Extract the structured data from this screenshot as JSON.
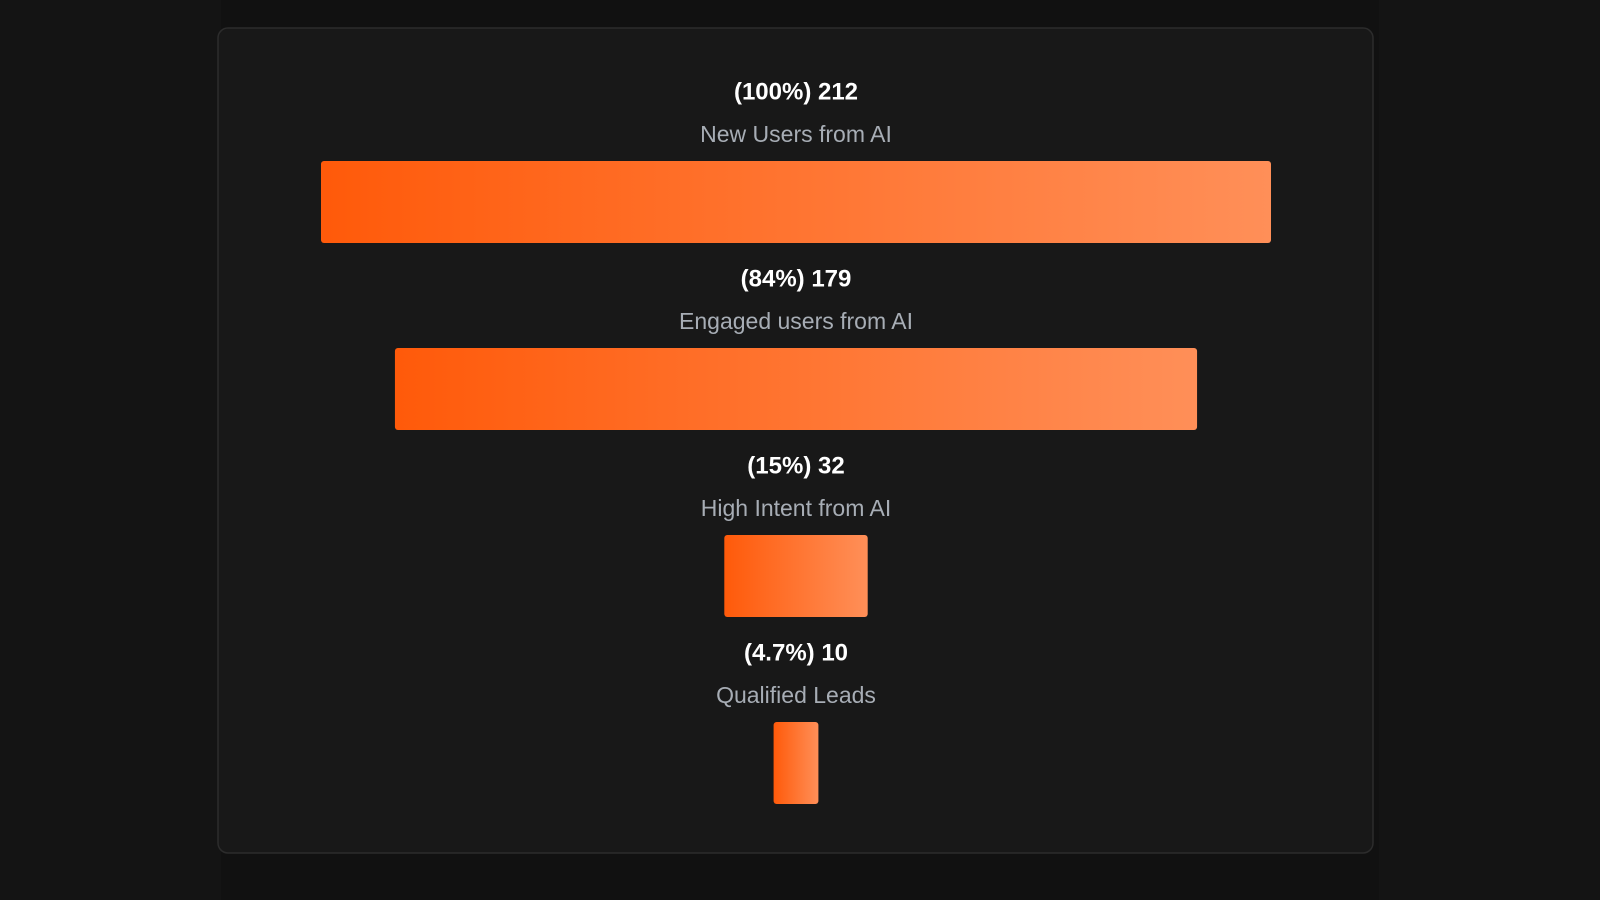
{
  "chart_data": {
    "type": "funnel",
    "categories": [
      "New Users from AI",
      "Engaged users from AI",
      "High Intent from AI",
      "Qualified Leads"
    ],
    "values": [
      212,
      179,
      32,
      10
    ],
    "value_labels": [
      "(100%) 212",
      "(84%) 179",
      "(15%) 32",
      "(4.7%) 10"
    ],
    "colors": [
      "#ff5a0a",
      "#ff8f58"
    ]
  }
}
